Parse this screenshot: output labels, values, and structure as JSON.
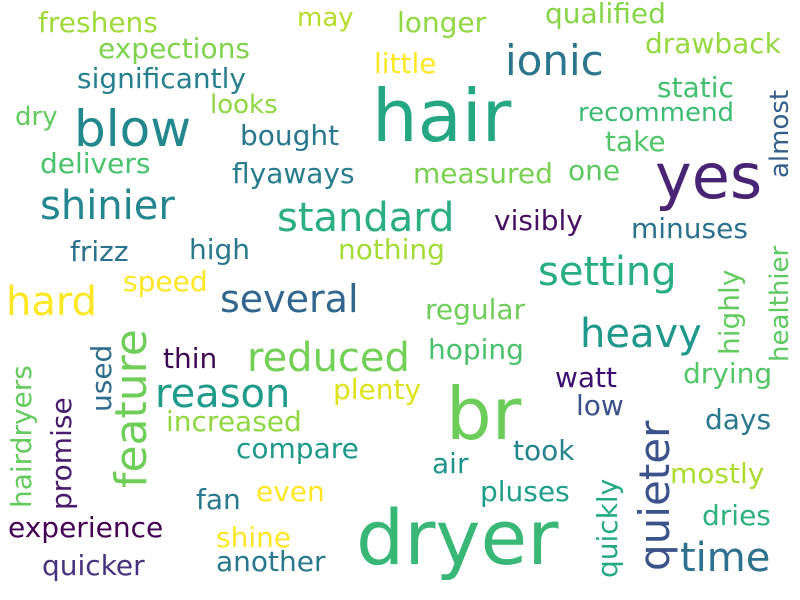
{
  "word_cloud": {
    "words": [
      {
        "text": "hair",
        "color": "#25a784"
      },
      {
        "text": "dryer",
        "color": "#38b776"
      },
      {
        "text": "br",
        "color": "#6ccd5a"
      },
      {
        "text": "yes",
        "color": "#482475"
      },
      {
        "text": "blow",
        "color": "#23888e"
      },
      {
        "text": "ionic",
        "color": "#2a768e"
      },
      {
        "text": "shinier",
        "color": "#24868e"
      },
      {
        "text": "standard",
        "color": "#2aaf7f"
      },
      {
        "text": "setting",
        "color": "#29af7f"
      },
      {
        "text": "heavy",
        "color": "#1f988b"
      },
      {
        "text": "several",
        "color": "#31668e"
      },
      {
        "text": "reduced",
        "color": "#73d056"
      },
      {
        "text": "reason",
        "color": "#1e9c89"
      },
      {
        "text": "hard",
        "color": "#fde725"
      },
      {
        "text": "feature",
        "color": "#6ece58"
      },
      {
        "text": "quieter",
        "color": "#3b528b"
      },
      {
        "text": "time",
        "color": "#2d718e"
      },
      {
        "text": "freshens",
        "color": "#a0da39"
      },
      {
        "text": "may",
        "color": "#b5de2b"
      },
      {
        "text": "longer",
        "color": "#90d743"
      },
      {
        "text": "qualified",
        "color": "#86d549"
      },
      {
        "text": "expections",
        "color": "#7fd34e"
      },
      {
        "text": "drawback",
        "color": "#95d840"
      },
      {
        "text": "significantly",
        "color": "#277f8e"
      },
      {
        "text": "little",
        "color": "#fde725"
      },
      {
        "text": "static",
        "color": "#44bf70"
      },
      {
        "text": "recommend",
        "color": "#3dbc74"
      },
      {
        "text": "dry",
        "color": "#63cb5f"
      },
      {
        "text": "looks",
        "color": "#90d743"
      },
      {
        "text": "bought",
        "color": "#2a788e"
      },
      {
        "text": "take",
        "color": "#52c569"
      },
      {
        "text": "delivers",
        "color": "#4ac16d"
      },
      {
        "text": "flyaways",
        "color": "#297b8e"
      },
      {
        "text": "measured",
        "color": "#7ad151"
      },
      {
        "text": "one",
        "color": "#5ec962"
      },
      {
        "text": "almost",
        "color": "#355f8d"
      },
      {
        "text": "visibly",
        "color": "#471063"
      },
      {
        "text": "minuses",
        "color": "#2c728e"
      },
      {
        "text": "healthier",
        "color": "#5ec962"
      },
      {
        "text": "frizz",
        "color": "#2c728e"
      },
      {
        "text": "high",
        "color": "#2a788e"
      },
      {
        "text": "nothing",
        "color": "#a5db36"
      },
      {
        "text": "highly",
        "color": "#63cb5f"
      },
      {
        "text": "speed",
        "color": "#fde725"
      },
      {
        "text": "regular",
        "color": "#6ece58"
      },
      {
        "text": "hoping",
        "color": "#4ac16d"
      },
      {
        "text": "thin",
        "color": "#3e0751"
      },
      {
        "text": "watt",
        "color": "#3b0f70"
      },
      {
        "text": "drying",
        "color": "#54c568"
      },
      {
        "text": "used",
        "color": "#2f6c8e"
      },
      {
        "text": "plenty",
        "color": "#dde318"
      },
      {
        "text": "low",
        "color": "#3b528b"
      },
      {
        "text": "hairdryers",
        "color": "#65cb5e"
      },
      {
        "text": "promise",
        "color": "#481b6d"
      },
      {
        "text": "increased",
        "color": "#90d743"
      },
      {
        "text": "days",
        "color": "#2a788e"
      },
      {
        "text": "compare",
        "color": "#1f9a8a"
      },
      {
        "text": "took",
        "color": "#25848e"
      },
      {
        "text": "air",
        "color": "#1f948c"
      },
      {
        "text": "quickly",
        "color": "#24aa83"
      },
      {
        "text": "mostly",
        "color": "#addc30"
      },
      {
        "text": "fan",
        "color": "#2a788e"
      },
      {
        "text": "even",
        "color": "#fde725"
      },
      {
        "text": "pluses",
        "color": "#1f9e89"
      },
      {
        "text": "dries",
        "color": "#2db27d"
      },
      {
        "text": "experience",
        "color": "#440154"
      },
      {
        "text": "shine",
        "color": "#fde725"
      },
      {
        "text": "another",
        "color": "#2a788e"
      },
      {
        "text": "quicker",
        "color": "#46327e"
      }
    ]
  }
}
